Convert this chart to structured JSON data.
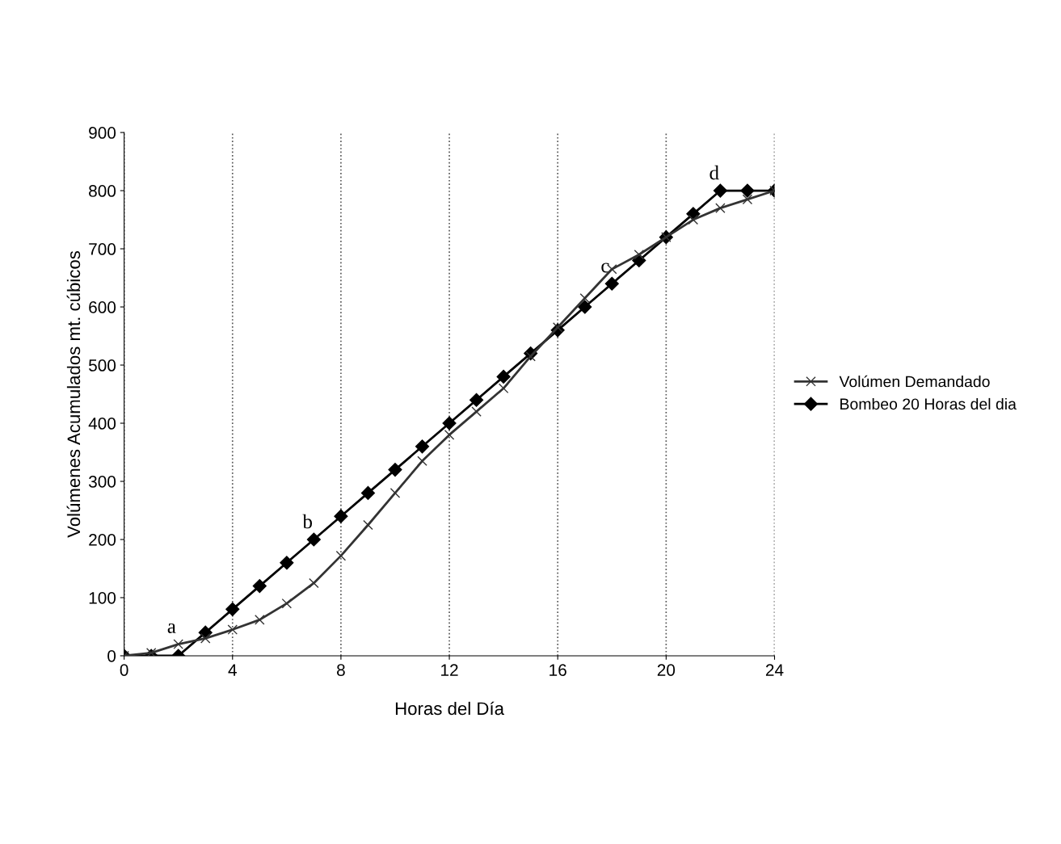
{
  "chart_data": {
    "type": "line",
    "xlabel": "Horas del Día",
    "ylabel": "Volúmenes Acumulados mt. cúbicos",
    "x": [
      0,
      1,
      2,
      3,
      4,
      5,
      6,
      7,
      8,
      9,
      10,
      11,
      12,
      13,
      14,
      15,
      16,
      17,
      18,
      19,
      20,
      21,
      22,
      23,
      24
    ],
    "series": [
      {
        "name": "Volúmen Demandado",
        "color": "#333333",
        "marker": "cross",
        "values": [
          0,
          5,
          20,
          30,
          45,
          62,
          90,
          125,
          172,
          225,
          280,
          335,
          380,
          420,
          460,
          515,
          565,
          615,
          665,
          690,
          720,
          750,
          770,
          785,
          800
        ]
      },
      {
        "name": "Bombeo 20 Horas del dia",
        "color": "#000000",
        "marker": "diamond",
        "values": [
          0,
          0,
          0,
          40,
          80,
          120,
          160,
          200,
          240,
          280,
          320,
          360,
          400,
          440,
          480,
          520,
          560,
          600,
          640,
          680,
          720,
          760,
          800,
          800,
          800
        ]
      }
    ],
    "xlim": [
      0,
      24
    ],
    "xticks": [
      0,
      4,
      8,
      12,
      16,
      20,
      24
    ],
    "ylim": [
      0,
      900
    ],
    "yticks": [
      0,
      100,
      200,
      300,
      400,
      500,
      600,
      700,
      800,
      900
    ],
    "grid": "x",
    "legend": "right",
    "annotations": [
      {
        "text": "a",
        "x": 2,
        "y": 20
      },
      {
        "text": "b",
        "x": 7,
        "y": 200
      },
      {
        "text": "c",
        "x": 18,
        "y": 640
      },
      {
        "text": "d",
        "x": 22,
        "y": 800
      }
    ]
  }
}
